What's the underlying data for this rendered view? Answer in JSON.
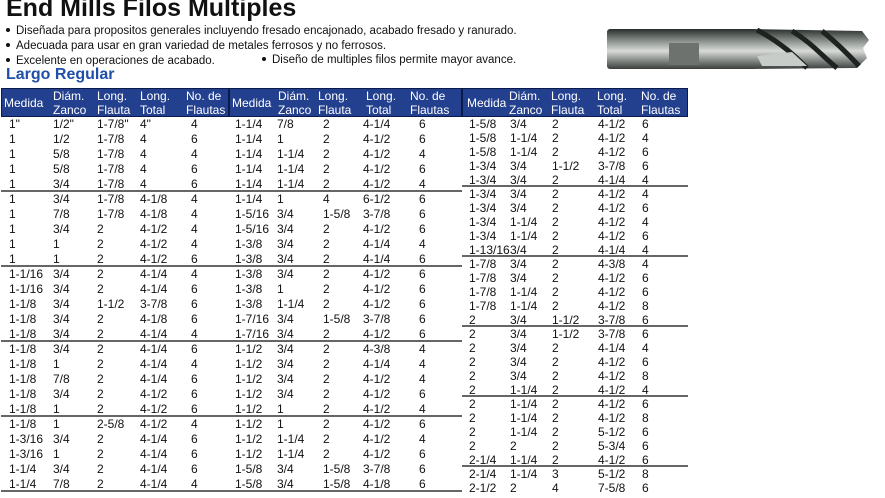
{
  "header": {
    "title": "End Mills Filos Multiples",
    "bullets": [
      "Diseñada para propositos generales incluyendo fresado encajonado, acabado fresado y ranurado.",
      "Adecuada para usar en gran variedad de metales ferrosos y no ferrosos.",
      "Excelente en operaciones de acabado.",
      "Diseño de multiples filos permite mayor avance."
    ],
    "subtitle": "Largo Regular"
  },
  "colors": {
    "header_bg": "#23408f",
    "subtitle": "#1f4fa8"
  },
  "columns": {
    "medida": "Medida",
    "zanco": [
      "Diám.",
      "Zanco"
    ],
    "flauta": [
      "Long.",
      "Flauta"
    ],
    "total": [
      "Long.",
      "Total"
    ],
    "flautas": [
      "No. de",
      "Flautas"
    ]
  },
  "tables": [
    {
      "rows": [
        [
          "1\"",
          "1/2\"",
          "1-7/8\"",
          "4\"",
          "4"
        ],
        [
          "1",
          "1/2",
          "1-7/8",
          "4",
          "6"
        ],
        [
          "1",
          "5/8",
          "1-7/8",
          "4",
          "4"
        ],
        [
          "1",
          "5/8",
          "1-7/8",
          "4",
          "6"
        ],
        [
          "1",
          "3/4",
          "1-7/8",
          "4",
          "6"
        ],
        [
          "1",
          "3/4",
          "1-7/8",
          "4-1/8",
          "4"
        ],
        [
          "1",
          "7/8",
          "1-7/8",
          "4-1/8",
          "4"
        ],
        [
          "1",
          "3/4",
          "2",
          "4-1/2",
          "4"
        ],
        [
          "1",
          "1",
          "2",
          "4-1/2",
          "4"
        ],
        [
          "1",
          "1",
          "2",
          "4-1/2",
          "6"
        ],
        [
          "1-1/16",
          "3/4",
          "2",
          "4-1/4",
          "4"
        ],
        [
          "1-1/16",
          "3/4",
          "2",
          "4-1/4",
          "6"
        ],
        [
          "1-1/8",
          "3/4",
          "1-1/2",
          "3-7/8",
          "6"
        ],
        [
          "1-1/8",
          "3/4",
          "2",
          "4-1/8",
          "6"
        ],
        [
          "1-1/8",
          "3/4",
          "2",
          "4-1/4",
          "4"
        ],
        [
          "1-1/8",
          "3/4",
          "2",
          "4-1/4",
          "6"
        ],
        [
          "1-1/8",
          "1",
          "2",
          "4-1/4",
          "4"
        ],
        [
          "1-1/8",
          "7/8",
          "2",
          "4-1/4",
          "6"
        ],
        [
          "1-1/8",
          "3/4",
          "2",
          "4-1/2",
          "6"
        ],
        [
          "1-1/8",
          "1",
          "2",
          "4-1/2",
          "6"
        ],
        [
          "1-1/8",
          "1",
          "2-5/8",
          "4-1/2",
          "4"
        ],
        [
          "1-3/16",
          "3/4",
          "2",
          "4-1/4",
          "6"
        ],
        [
          "1-3/16",
          "1",
          "2",
          "4-1/4",
          "6"
        ],
        [
          "1-1/4",
          "3/4",
          "2",
          "4-1/4",
          "6"
        ],
        [
          "1-1/4",
          "7/8",
          "2",
          "4-1/4",
          "4"
        ]
      ]
    },
    {
      "rows": [
        [
          "1-1/4",
          "7/8",
          "2",
          "4-1/4",
          "6"
        ],
        [
          "1-1/4",
          "1",
          "2",
          "4-1/2",
          "6"
        ],
        [
          "1-1/4",
          "1-1/4",
          "2",
          "4-1/2",
          "4"
        ],
        [
          "1-1/4",
          "1-1/4",
          "2",
          "4-1/2",
          "6"
        ],
        [
          "1-1/4",
          "1-1/4",
          "2",
          "4-1/2",
          "4"
        ],
        [
          "1-1/4",
          "1",
          "4",
          "6-1/2",
          "6"
        ],
        [
          "1-5/16",
          "3/4",
          "1-5/8",
          "3-7/8",
          "6"
        ],
        [
          "1-5/16",
          "3/4",
          "2",
          "4-1/2",
          "6"
        ],
        [
          "1-3/8",
          "3/4",
          "2",
          "4-1/4",
          "4"
        ],
        [
          "1-3/8",
          "3/4",
          "2",
          "4-1/4",
          "6"
        ],
        [
          "1-3/8",
          "3/4",
          "2",
          "4-1/2",
          "6"
        ],
        [
          "1-3/8",
          "1",
          "2",
          "4-1/2",
          "6"
        ],
        [
          "1-3/8",
          "1-1/4",
          "2",
          "4-1/2",
          "6"
        ],
        [
          "1-7/16",
          "3/4",
          "1-5/8",
          "3-7/8",
          "6"
        ],
        [
          "1-7/16",
          "3/4",
          "2",
          "4-1/2",
          "6"
        ],
        [
          "1-1/2",
          "3/4",
          "2",
          "4-3/8",
          "4"
        ],
        [
          "1-1/2",
          "3/4",
          "2",
          "4-1/4",
          "4"
        ],
        [
          "1-1/2",
          "3/4",
          "2",
          "4-1/2",
          "4"
        ],
        [
          "1-1/2",
          "3/4",
          "2",
          "4-1/2",
          "6"
        ],
        [
          "1-1/2",
          "1",
          "2",
          "4-1/2",
          "4"
        ],
        [
          "1-1/2",
          "1",
          "2",
          "4-1/2",
          "6"
        ],
        [
          "1-1/2",
          "1-1/4",
          "2",
          "4-1/2",
          "4"
        ],
        [
          "1-1/2",
          "1-1/4",
          "2",
          "4-1/2",
          "6"
        ],
        [
          "1-5/8",
          "3/4",
          "1-5/8",
          "3-7/8",
          "6"
        ],
        [
          "1-5/8",
          "3/4",
          "1-5/8",
          "4-1/8",
          "6"
        ]
      ]
    },
    {
      "rows": [
        [
          "1-5/8",
          "3/4",
          "2",
          "4-1/2",
          "6"
        ],
        [
          "1-5/8",
          "1-1/4",
          "2",
          "4-1/2",
          "4"
        ],
        [
          "1-5/8",
          "1-1/4",
          "2",
          "4-1/2",
          "6"
        ],
        [
          "1-3/4",
          "3/4",
          "1-1/2",
          "3-7/8",
          "6"
        ],
        [
          "1-3/4",
          "3/4",
          "2",
          "4-1/4",
          "4"
        ],
        [
          "1-3/4",
          "3/4",
          "2",
          "4-1/2",
          "4"
        ],
        [
          "1-3/4",
          "3/4",
          "2",
          "4-1/2",
          "6"
        ],
        [
          "1-3/4",
          "1-1/4",
          "2",
          "4-1/2",
          "4"
        ],
        [
          "1-3/4",
          "1-1/4",
          "2",
          "4-1/2",
          "6"
        ],
        [
          "1-13/16",
          "3/4",
          "2",
          "4-1/4",
          "4"
        ],
        [
          "1-7/8",
          "3/4",
          "2",
          "4-3/8",
          "4"
        ],
        [
          "1-7/8",
          "3/4",
          "2",
          "4-1/2",
          "6"
        ],
        [
          "1-7/8",
          "1-1/4",
          "2",
          "4-1/2",
          "6"
        ],
        [
          "1-7/8",
          "1-1/4",
          "2",
          "4-1/2",
          "8"
        ],
        [
          "2",
          "3/4",
          "1-1/2",
          "3-7/8",
          "6"
        ],
        [
          "2",
          "3/4",
          "1-1/2",
          "3-7/8",
          "6"
        ],
        [
          "2",
          "3/4",
          "2",
          "4-1/4",
          "4"
        ],
        [
          "2",
          "3/4",
          "2",
          "4-1/2",
          "6"
        ],
        [
          "2",
          "3/4",
          "2",
          "4-1/2",
          "8"
        ],
        [
          "2",
          "1-1/4",
          "2",
          "4-1/2",
          "4"
        ],
        [
          "2",
          "1-1/4",
          "2",
          "4-1/2",
          "6"
        ],
        [
          "2",
          "1-1/4",
          "2",
          "4-1/2",
          "8"
        ],
        [
          "2",
          "1-1/4",
          "2",
          "5-1/2",
          "6"
        ],
        [
          "2",
          "2",
          "2",
          "5-3/4",
          "6"
        ],
        [
          "2-1/4",
          "1-1/4",
          "2",
          "4-1/2",
          "6"
        ],
        [
          "2-1/4",
          "1-1/4",
          "3",
          "5-1/2",
          "8"
        ],
        [
          "2-1/2",
          "2",
          "4",
          "7-5/8",
          "6"
        ]
      ]
    }
  ]
}
